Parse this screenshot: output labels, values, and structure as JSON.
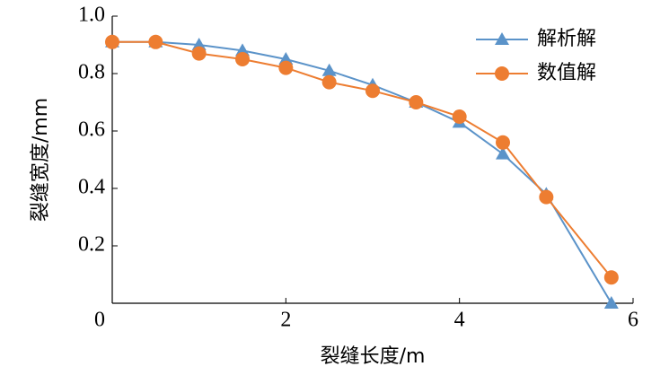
{
  "chart_data": {
    "type": "line",
    "x_label": "裂缝长度/m",
    "y_label": "裂缝宽度/mm",
    "xlim": [
      0,
      6
    ],
    "xticks": [
      0,
      2,
      4,
      6
    ],
    "ylim": [
      0,
      1
    ],
    "yticks": [
      0.2,
      0.4,
      0.6,
      0.8,
      {
        "value": 1,
        "label": "1.0"
      }
    ],
    "x": [
      0,
      0.5,
      1,
      1.5,
      2,
      2.5,
      3,
      3.5,
      4,
      4.5,
      5,
      5.75
    ],
    "legend": "upper right",
    "series": [
      {
        "name": "解析解",
        "color": "#5b93c9",
        "marker": "triangle",
        "values": [
          0.91,
          0.91,
          0.9,
          0.88,
          0.85,
          0.81,
          0.76,
          0.7,
          0.63,
          0.52,
          0.38,
          0.0
        ]
      },
      {
        "name": "数值解",
        "color": "#ed7d31",
        "marker": "circle",
        "values": [
          0.91,
          0.91,
          0.87,
          0.85,
          0.82,
          0.77,
          0.74,
          0.7,
          0.65,
          0.56,
          0.37,
          0.09
        ]
      }
    ]
  }
}
